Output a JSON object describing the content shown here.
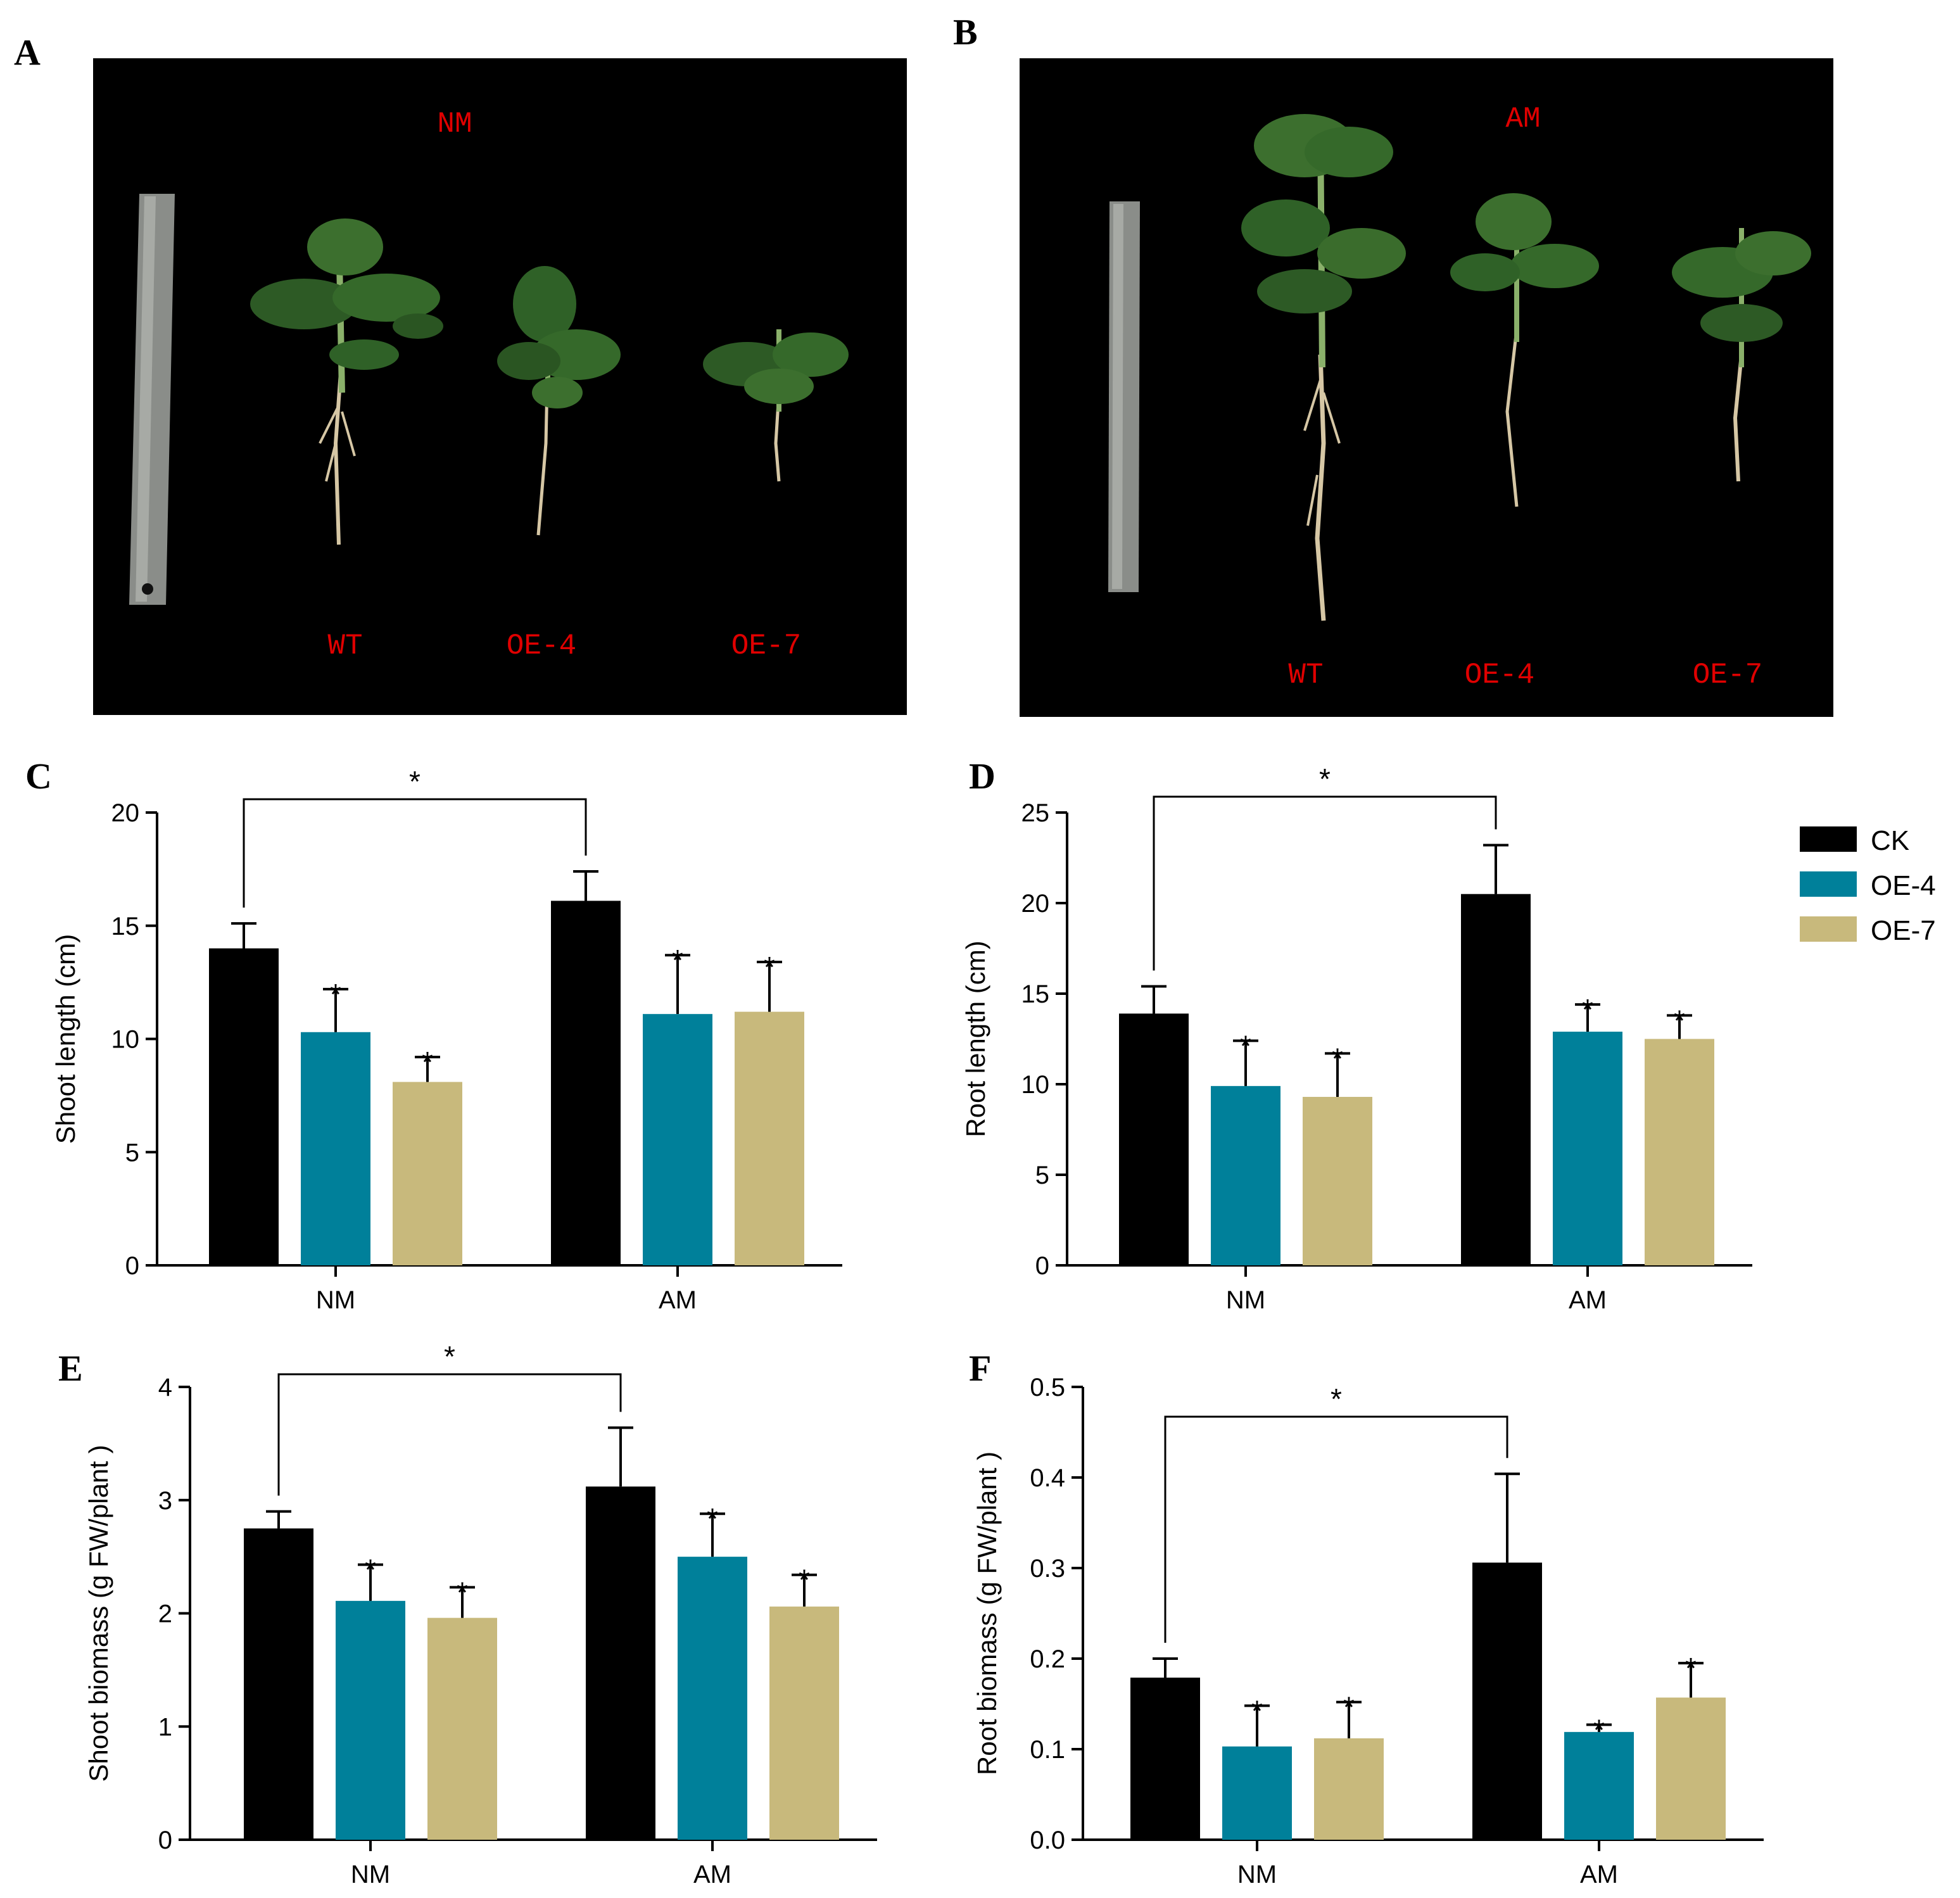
{
  "photos": [
    {
      "letter": "A",
      "condition": "NM",
      "plants": [
        "WT",
        "OE-4",
        "OE-7"
      ]
    },
    {
      "letter": "B",
      "condition": "AM",
      "plants": [
        "WT",
        "OE-4",
        "OE-7"
      ]
    }
  ],
  "legend": [
    "CK",
    "OE-4",
    "OE-7"
  ],
  "colors": {
    "CK": "#000000",
    "OE-4": "#00809a",
    "OE-7": "#c8b97c"
  },
  "significance_mark": "*",
  "chart_data": [
    {
      "letter": "C",
      "type": "bar",
      "title": "",
      "ylabel": "Shoot length  (cm)",
      "categories": [
        "NM",
        "AM"
      ],
      "ylim": [
        0,
        20
      ],
      "yticks": [
        "0",
        "5",
        "10",
        "15",
        "20"
      ],
      "series": [
        {
          "name": "CK",
          "values": [
            14.0,
            16.1
          ],
          "errors": [
            1.1,
            1.3
          ],
          "sig": [
            "",
            ""
          ]
        },
        {
          "name": "OE-4",
          "values": [
            10.3,
            11.1
          ],
          "errors": [
            1.9,
            2.6
          ],
          "sig": [
            "*",
            "*"
          ]
        },
        {
          "name": "OE-7",
          "values": [
            8.1,
            11.2
          ],
          "errors": [
            1.1,
            2.2
          ],
          "sig": [
            "*",
            "*"
          ]
        }
      ],
      "bracket_label": "*"
    },
    {
      "letter": "D",
      "type": "bar",
      "title": "",
      "ylabel": "Root length  (cm)",
      "categories": [
        "NM",
        "AM"
      ],
      "ylim": [
        0,
        25
      ],
      "yticks": [
        "0",
        "5",
        "10",
        "15",
        "20",
        "25"
      ],
      "series": [
        {
          "name": "CK",
          "values": [
            13.9,
            20.5
          ],
          "errors": [
            1.5,
            2.7
          ],
          "sig": [
            "",
            ""
          ]
        },
        {
          "name": "OE-4",
          "values": [
            9.9,
            12.9
          ],
          "errors": [
            2.5,
            1.5
          ],
          "sig": [
            "*",
            "*"
          ]
        },
        {
          "name": "OE-7",
          "values": [
            9.3,
            12.5
          ],
          "errors": [
            2.4,
            1.3
          ],
          "sig": [
            "*",
            "*"
          ]
        }
      ],
      "bracket_label": "*"
    },
    {
      "letter": "E",
      "type": "bar",
      "title": "",
      "ylabel": "Shoot biomass (g FW/plant )",
      "categories": [
        "NM",
        "AM"
      ],
      "ylim": [
        0,
        4
      ],
      "yticks": [
        "0",
        "1",
        "2",
        "3",
        "4"
      ],
      "series": [
        {
          "name": "CK",
          "values": [
            2.75,
            3.12
          ],
          "errors": [
            0.15,
            0.52
          ],
          "sig": [
            "",
            ""
          ]
        },
        {
          "name": "OE-4",
          "values": [
            2.11,
            2.5
          ],
          "errors": [
            0.32,
            0.38
          ],
          "sig": [
            "*",
            "*"
          ]
        },
        {
          "name": "OE-7",
          "values": [
            1.96,
            2.06
          ],
          "errors": [
            0.27,
            0.28
          ],
          "sig": [
            "*",
            "*"
          ]
        }
      ],
      "bracket_label": "*"
    },
    {
      "letter": "F",
      "type": "bar",
      "title": "",
      "ylabel": "Root biomass (g FW/plant )",
      "categories": [
        "NM",
        "AM"
      ],
      "ylim": [
        0,
        0.5
      ],
      "yticks": [
        "0.0",
        "0.1",
        "0.2",
        "0.3",
        "0.4",
        "0.5"
      ],
      "series": [
        {
          "name": "CK",
          "values": [
            0.179,
            0.306
          ],
          "errors": [
            0.021,
            0.098
          ],
          "sig": [
            "",
            ""
          ]
        },
        {
          "name": "OE-4",
          "values": [
            0.103,
            0.119
          ],
          "errors": [
            0.045,
            0.008
          ],
          "sig": [
            "*",
            "*"
          ]
        },
        {
          "name": "OE-7",
          "values": [
            0.112,
            0.157
          ],
          "errors": [
            0.04,
            0.038
          ],
          "sig": [
            "*",
            "*"
          ]
        }
      ],
      "bracket_label": "*"
    }
  ]
}
